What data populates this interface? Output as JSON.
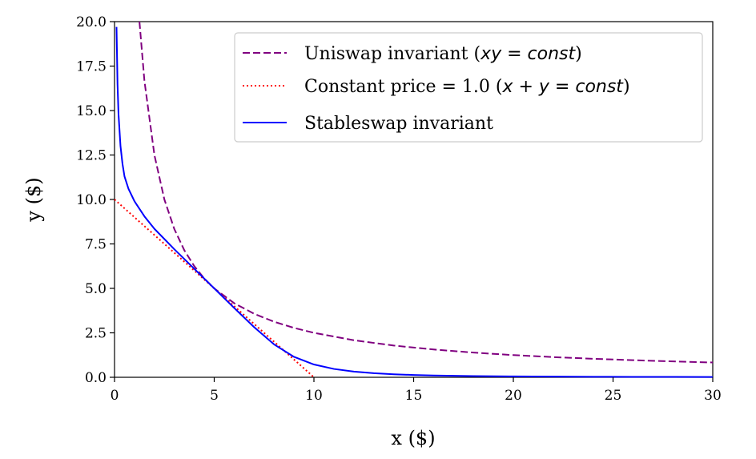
{
  "chart_data": {
    "type": "line",
    "title": "",
    "xlabel": "x ($)",
    "ylabel": "y ($)",
    "xlim": [
      0,
      30
    ],
    "ylim": [
      0,
      20
    ],
    "x_ticks": [
      "0",
      "5",
      "10",
      "15",
      "20",
      "25",
      "30"
    ],
    "x_tick_values": [
      0,
      5,
      10,
      15,
      20,
      25,
      30
    ],
    "y_ticks": [
      "0.0",
      "2.5",
      "5.0",
      "7.5",
      "10.0",
      "12.5",
      "15.0",
      "17.5",
      "20.0"
    ],
    "y_tick_values": [
      0,
      2.5,
      5,
      7.5,
      10,
      12.5,
      15,
      17.5,
      20
    ],
    "grid": false,
    "legend_position": "top-right",
    "series": [
      {
        "name_prefix": "Uniswap invariant (",
        "name_math": "xy = const",
        "name_suffix": ")",
        "color": "#800080",
        "style": "dashed",
        "x": [
          1.25,
          1.5,
          2,
          2.5,
          3,
          3.5,
          4,
          4.5,
          5,
          6,
          7,
          8,
          9,
          10,
          12,
          14,
          16,
          18,
          20,
          22,
          24,
          26,
          28,
          30
        ],
        "y": [
          20,
          16.667,
          12.5,
          10,
          8.333,
          7.143,
          6.25,
          5.556,
          5,
          4.167,
          3.571,
          3.125,
          2.778,
          2.5,
          2.083,
          1.786,
          1.563,
          1.389,
          1.25,
          1.136,
          1.042,
          0.962,
          0.893,
          0.833
        ]
      },
      {
        "name_prefix": "Constant price = 1.0 (",
        "name_math": "x + y = const",
        "name_suffix": ")",
        "color": "#ff0000",
        "style": "dotted",
        "x": [
          0,
          10
        ],
        "y": [
          10,
          0
        ]
      },
      {
        "name_prefix": "Stableswap invariant",
        "name_math": "",
        "name_suffix": "",
        "color": "#0000ff",
        "style": "solid",
        "x": [
          0.1,
          0.15,
          0.2,
          0.3,
          0.4,
          0.5,
          0.7,
          1,
          1.5,
          2,
          3,
          4,
          5,
          6,
          7,
          8,
          9,
          10,
          11,
          12,
          13,
          14,
          15,
          16,
          18,
          20,
          22,
          24,
          26,
          28,
          30
        ],
        "y": [
          19.7,
          16.5,
          14.8,
          13.0,
          12.0,
          11.3,
          10.6,
          9.9,
          9.05,
          8.35,
          7.2,
          6.1,
          5.0,
          3.9,
          2.82,
          1.85,
          1.15,
          0.72,
          0.47,
          0.32,
          0.23,
          0.17,
          0.13,
          0.1,
          0.07,
          0.05,
          0.04,
          0.03,
          0.025,
          0.02,
          0.015
        ]
      }
    ]
  }
}
